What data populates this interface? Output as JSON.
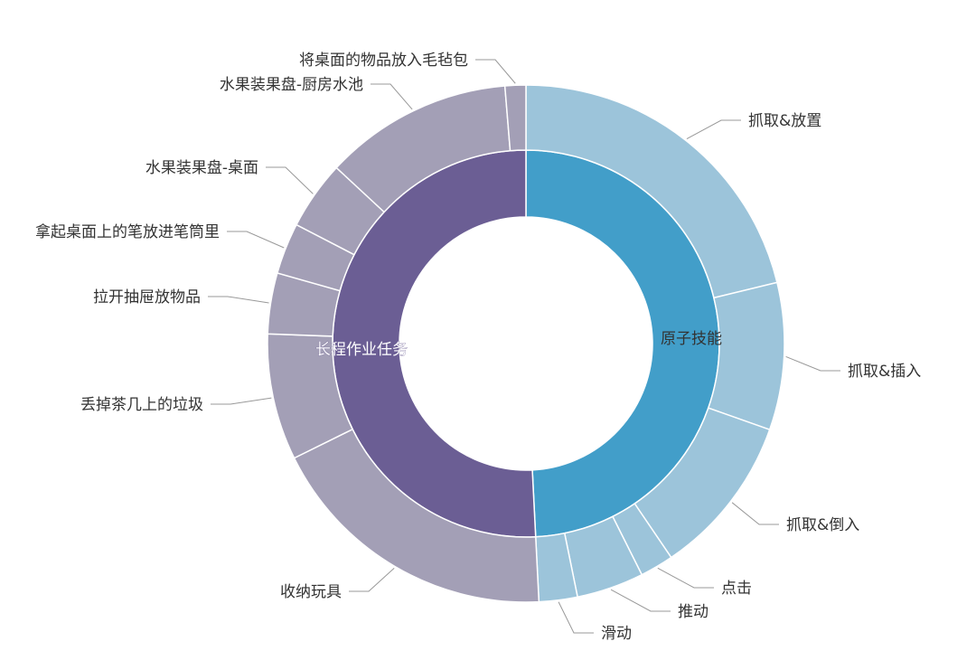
{
  "chart_data": {
    "type": "sunburst",
    "title": "",
    "unit": "",
    "colors": {
      "inner": [
        "#429ec9",
        "#6b5e94"
      ],
      "outer": [
        "#9cc4da",
        "#a39fb6"
      ]
    },
    "categories": [
      {
        "name": "原子技能",
        "value": 49.2,
        "children": [
          {
            "name": "抓取&放置",
            "value": 21.2
          },
          {
            "name": "抓取&插入",
            "value": 9.2
          },
          {
            "name": "抓取&倒入",
            "value": 10.1
          },
          {
            "name": "点击",
            "value": 2.1
          },
          {
            "name": "推动",
            "value": 4.2
          },
          {
            "name": "滑动",
            "value": 2.4
          }
        ]
      },
      {
        "name": "长程作业任务",
        "value": 50.8,
        "children": [
          {
            "name": "收纳玩具",
            "value": 18.5
          },
          {
            "name": "丢掉茶几上的垃圾",
            "value": 7.9
          },
          {
            "name": "拉开抽屉放物品",
            "value": 3.8
          },
          {
            "name": "拿起桌面上的笔放进笔筒里",
            "value": 3.2
          },
          {
            "name": "水果装果盘-桌面",
            "value": 4.3
          },
          {
            "name": "水果装果盘-厨房水池",
            "value": 11.8
          },
          {
            "name": "将桌面的物品放入毛毡包",
            "value": 1.3
          }
        ]
      }
    ]
  }
}
